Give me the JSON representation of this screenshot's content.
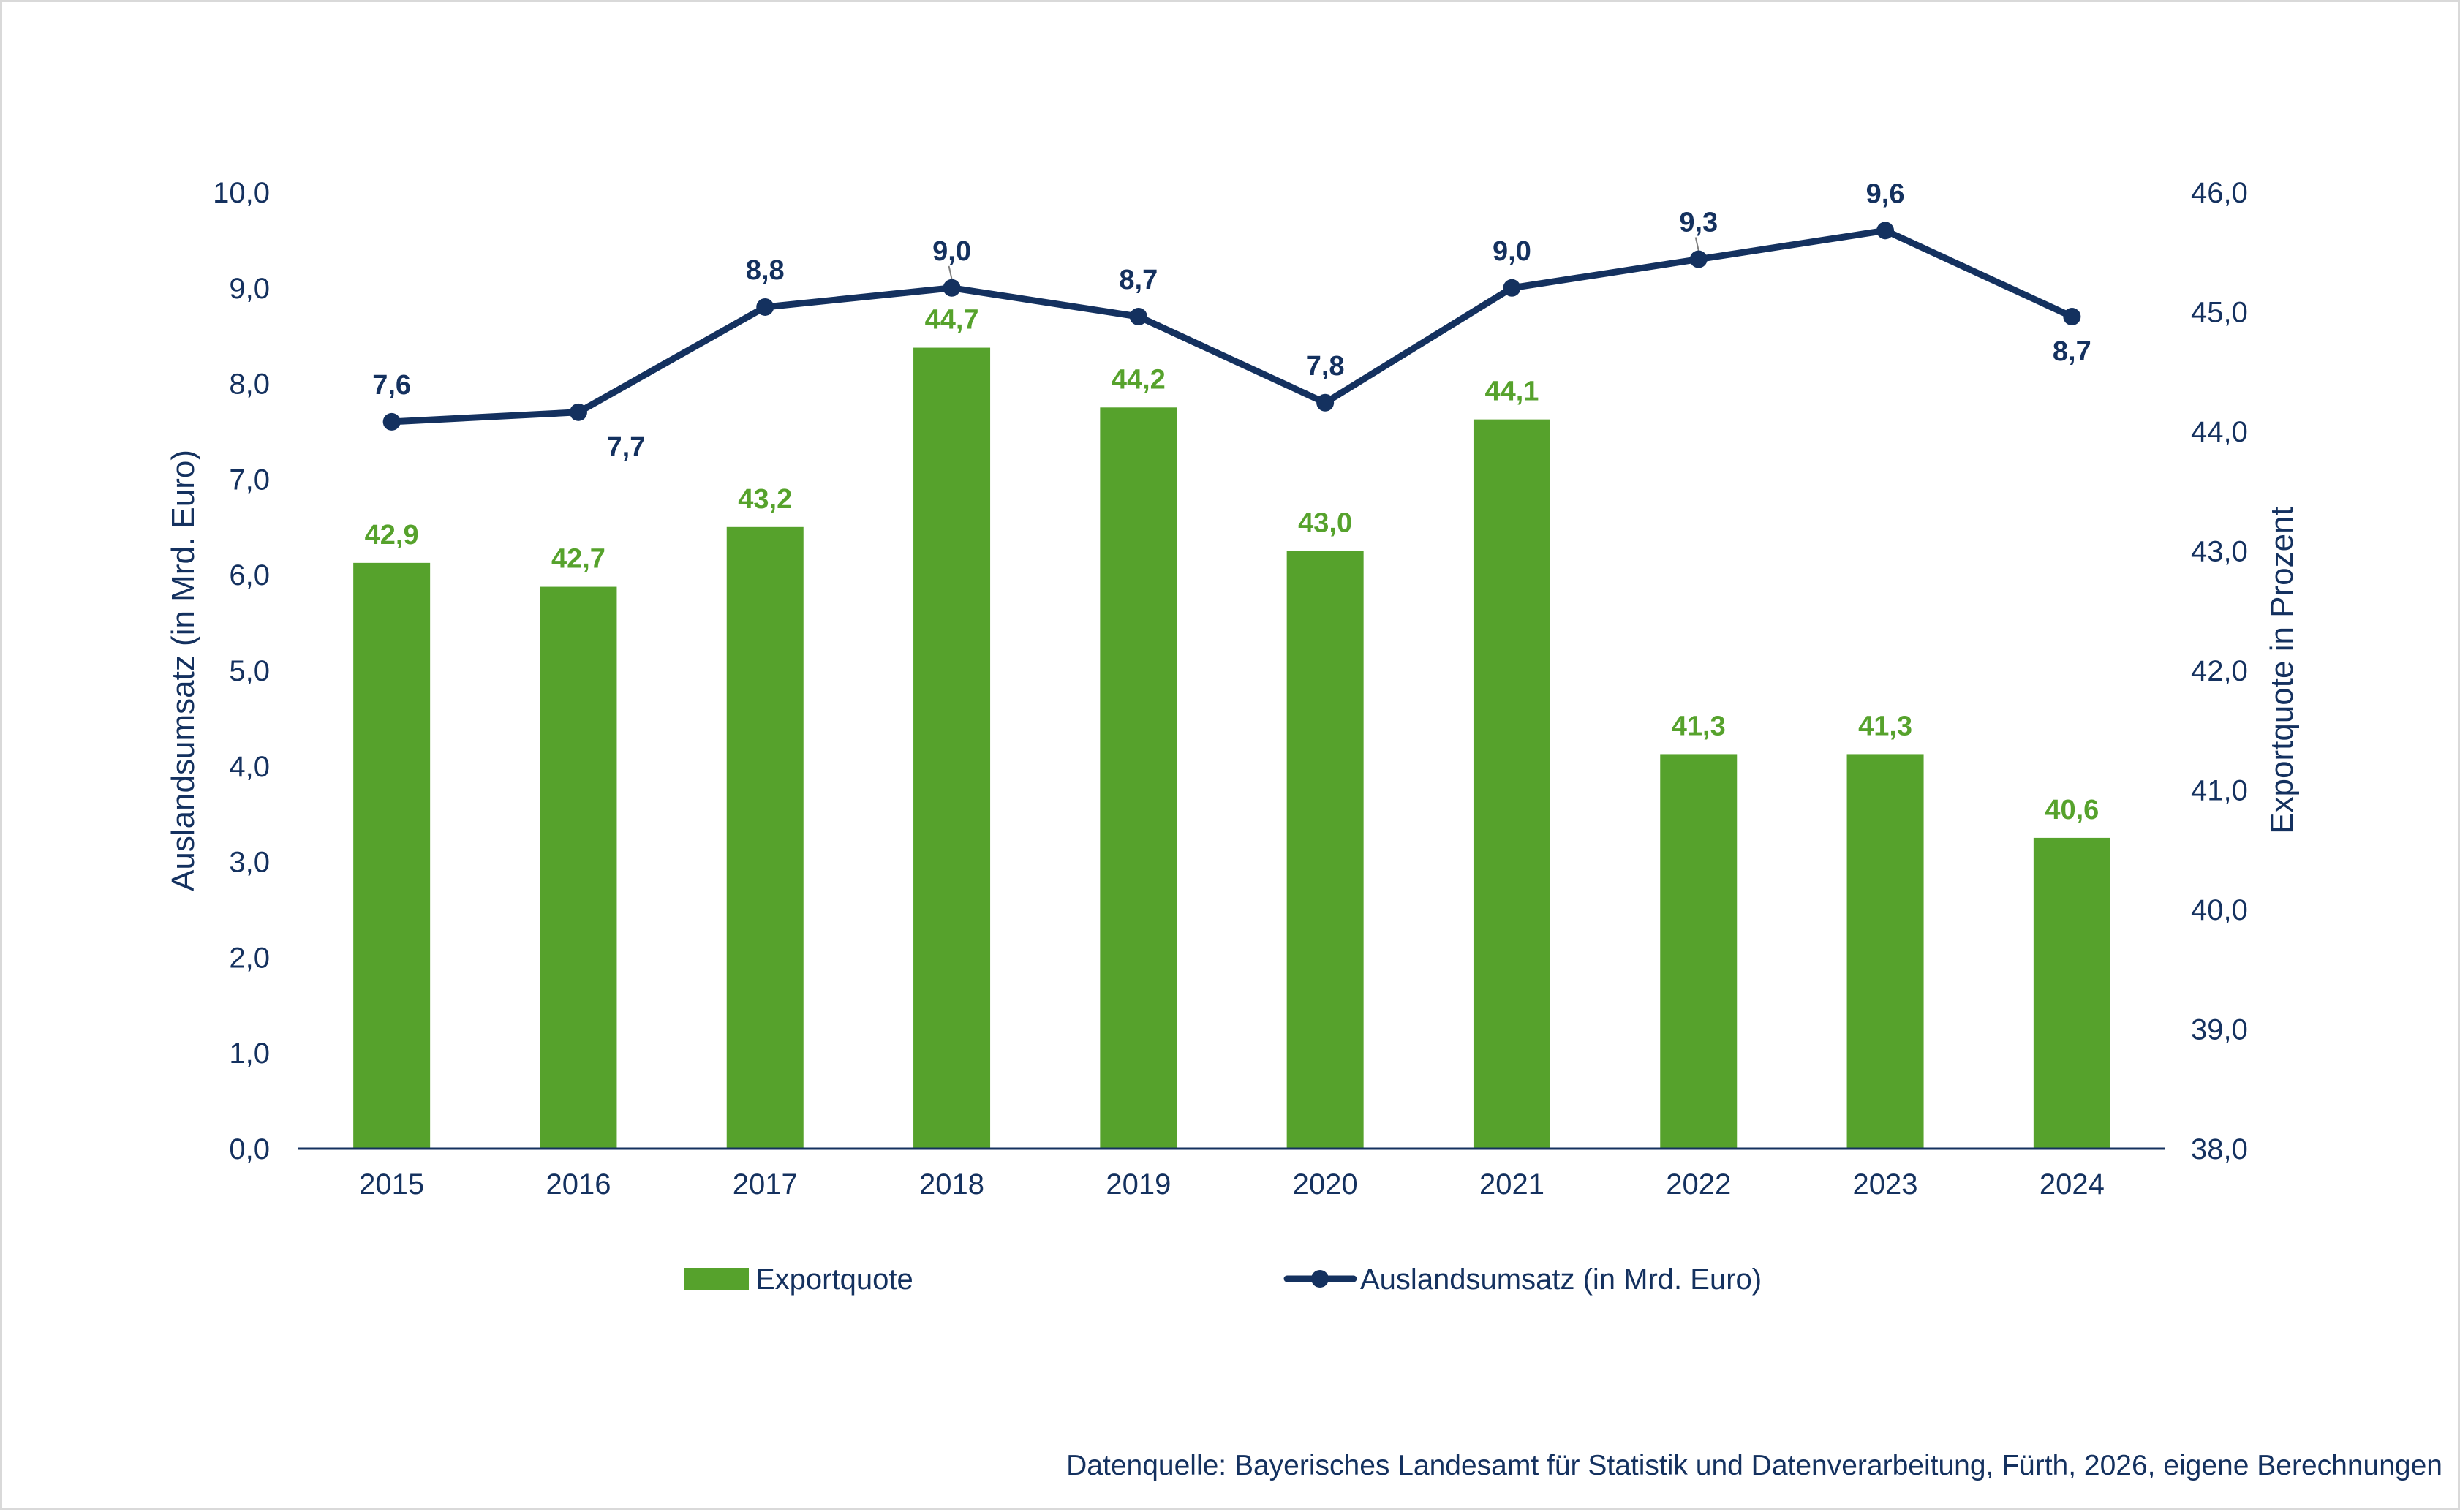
{
  "chart_data": {
    "type": "bar",
    "categories": [
      "2015",
      "2016",
      "2017",
      "2018",
      "2019",
      "2020",
      "2021",
      "2022",
      "2023",
      "2024"
    ],
    "series": [
      {
        "name": "Exportquote",
        "kind": "bar",
        "axis": "right",
        "color": "#56a22c",
        "values": [
          42.9,
          42.7,
          43.2,
          44.7,
          44.2,
          43.0,
          44.1,
          41.3,
          41.3,
          40.6
        ],
        "labels": [
          "42,9",
          "42,7",
          "43,2",
          "44,7",
          "44,2",
          "43,0",
          "44,1",
          "41,3",
          "41,3",
          "40,6"
        ]
      },
      {
        "name": "Auslandsumsatz (in Mrd. Euro)",
        "kind": "line",
        "axis": "left",
        "color": "#14315f",
        "values": [
          7.6,
          7.7,
          8.8,
          9.0,
          8.7,
          7.8,
          9.0,
          9.3,
          9.6,
          8.7
        ],
        "labels": [
          "7,6",
          "7,7",
          "8,8",
          "9,0",
          "8,7",
          "7,8",
          "9,0",
          "9,3",
          "9,6",
          "8,7"
        ]
      }
    ],
    "y_left": {
      "label": "Auslandsumsatz (in Mrd. Euro)",
      "range": [
        0,
        10
      ],
      "ticks": [
        "0,0",
        "1,0",
        "2,0",
        "3,0",
        "4,0",
        "5,0",
        "6,0",
        "7,0",
        "8,0",
        "9,0",
        "10,0"
      ]
    },
    "y_right": {
      "label": "Exportquote in Prozent",
      "range": [
        38,
        46
      ],
      "ticks": [
        "38,0",
        "39,0",
        "40,0",
        "41,0",
        "42,0",
        "43,0",
        "44,0",
        "45,0",
        "46,0"
      ]
    },
    "grid": false,
    "legend": "bottom",
    "source": "Datenquelle: Bayerisches Landesamt für Statistik und Datenverarbeitung, Fürth, 2026, eigene Berechnungen"
  }
}
